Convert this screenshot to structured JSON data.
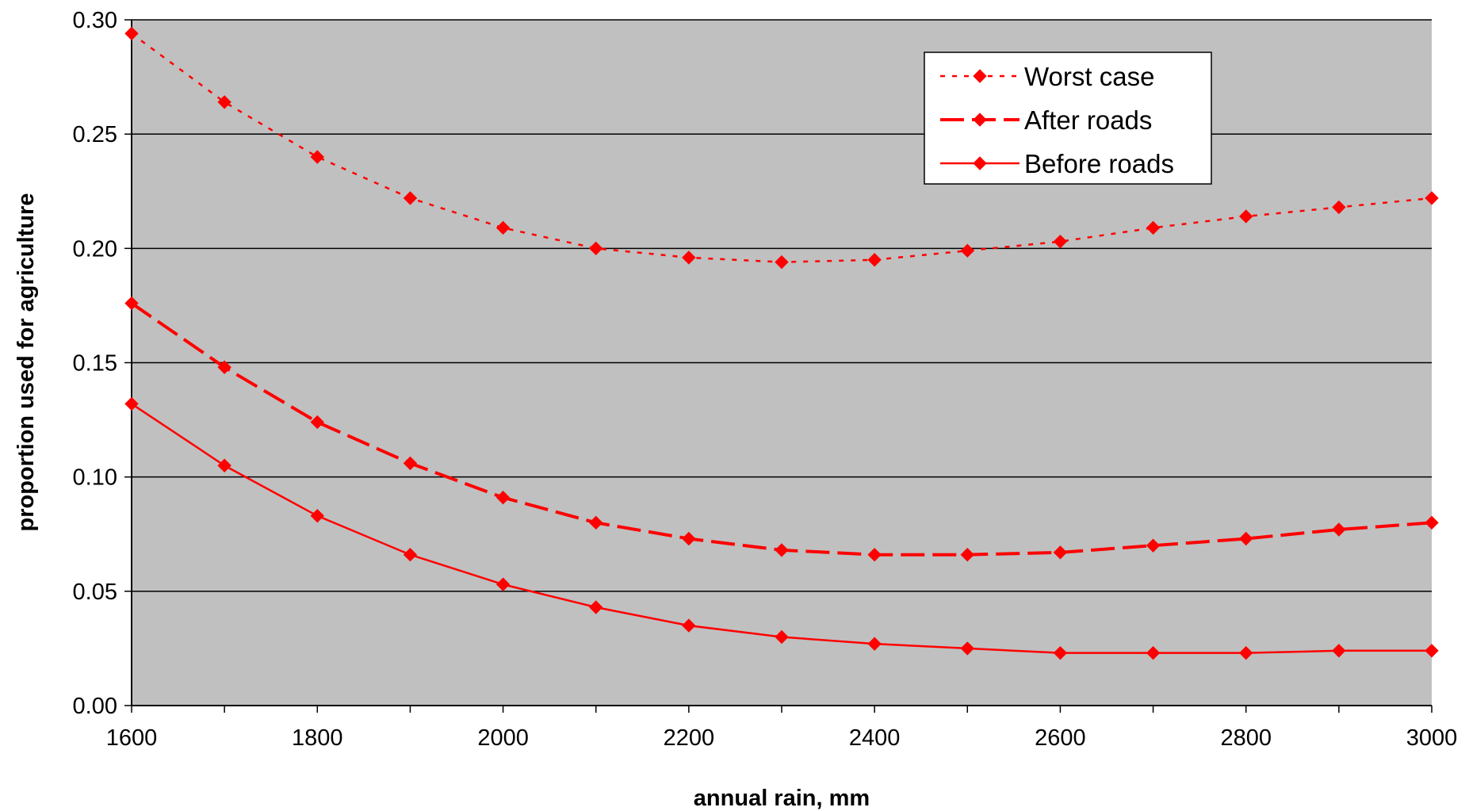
{
  "chart_data": {
    "type": "line",
    "title": "",
    "xlabel": "annual rain, mm",
    "ylabel": "proportion used for agriculture",
    "x": [
      1600,
      1700,
      1800,
      1900,
      2000,
      2100,
      2200,
      2300,
      2400,
      2500,
      2600,
      2700,
      2800,
      2900,
      3000
    ],
    "xlim": [
      1600,
      3000
    ],
    "ylim": [
      0,
      0.3
    ],
    "xticks": [
      "1600",
      "1800",
      "2000",
      "2200",
      "2400",
      "2600",
      "2800",
      "3000"
    ],
    "yticks": [
      "0.00",
      "0.05",
      "0.10",
      "0.15",
      "0.20",
      "0.25",
      "0.30"
    ],
    "grid": "horizontal",
    "legend_position": "top-right",
    "plot_background": "#c0c0c0",
    "series": [
      {
        "name": "Worst case",
        "style": "dotted",
        "color": "#ff0000",
        "marker": "diamond",
        "values": [
          0.294,
          0.264,
          0.24,
          0.222,
          0.209,
          0.2,
          0.196,
          0.194,
          0.195,
          0.199,
          0.203,
          0.209,
          0.214,
          0.218,
          0.222
        ]
      },
      {
        "name": "After roads",
        "style": "dashed",
        "color": "#ff0000",
        "marker": "diamond",
        "values": [
          0.176,
          0.148,
          0.124,
          0.106,
          0.091,
          0.08,
          0.073,
          0.068,
          0.066,
          0.066,
          0.067,
          0.07,
          0.073,
          0.077,
          0.08
        ]
      },
      {
        "name": "Before roads",
        "style": "solid",
        "color": "#ff0000",
        "marker": "diamond",
        "values": [
          0.132,
          0.105,
          0.083,
          0.066,
          0.053,
          0.043,
          0.035,
          0.03,
          0.027,
          0.025,
          0.023,
          0.023,
          0.023,
          0.024,
          0.024
        ]
      }
    ]
  }
}
